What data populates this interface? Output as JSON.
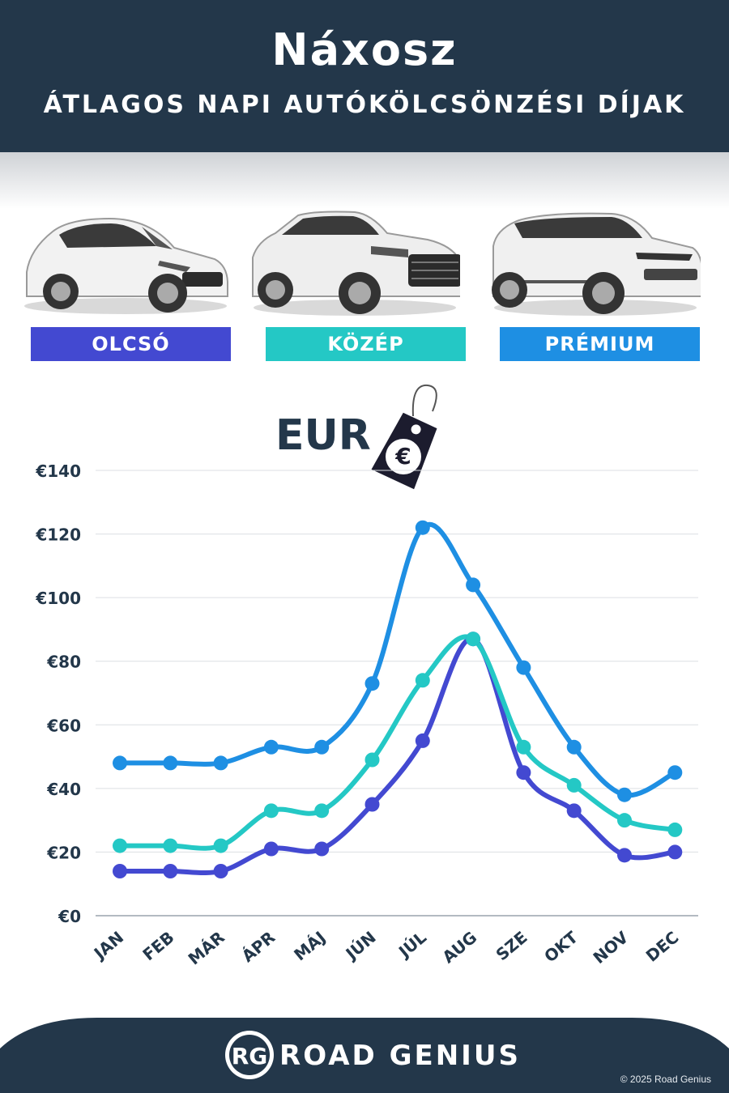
{
  "header": {
    "title": "Náxosz",
    "subtitle": "ÁTLAGOS NAPI AUTÓKÖLCSÖNZÉSI DÍJAK"
  },
  "categories": [
    {
      "label": "OLCSÓ",
      "color": "#4349d1"
    },
    {
      "label": "KÖZÉP",
      "color": "#24c8c5"
    },
    {
      "label": "PRÉMIUM",
      "color": "#1e8fe3"
    }
  ],
  "currency": {
    "label": "EUR",
    "symbol": "€"
  },
  "chart_data": {
    "type": "line",
    "categories": [
      "JAN",
      "FEB",
      "MÁR",
      "ÁPR",
      "MÁJ",
      "JÚN",
      "JÚL",
      "AUG",
      "SZE",
      "OKT",
      "NOV",
      "DEC"
    ],
    "yticks": [
      "€0",
      "€20",
      "€40",
      "€60",
      "€80",
      "€100",
      "€120",
      "€140"
    ],
    "ylim": [
      0,
      140
    ],
    "grid": true,
    "series": [
      {
        "name": "OLCSÓ",
        "color": "#4349d1",
        "values": [
          14,
          14,
          14,
          21,
          21,
          35,
          55,
          87,
          45,
          33,
          19,
          20
        ]
      },
      {
        "name": "KÖZÉP",
        "color": "#24c8c5",
        "values": [
          22,
          22,
          22,
          33,
          33,
          49,
          74,
          87,
          53,
          41,
          30,
          27
        ]
      },
      {
        "name": "PRÉMIUM",
        "color": "#1e8fe3",
        "values": [
          48,
          48,
          48,
          53,
          53,
          73,
          122,
          104,
          78,
          53,
          38,
          45
        ]
      }
    ]
  },
  "footer": {
    "logo_mark": "RG",
    "brand": "ROAD GENIUS",
    "copyright": "© 2025 Road Genius"
  }
}
